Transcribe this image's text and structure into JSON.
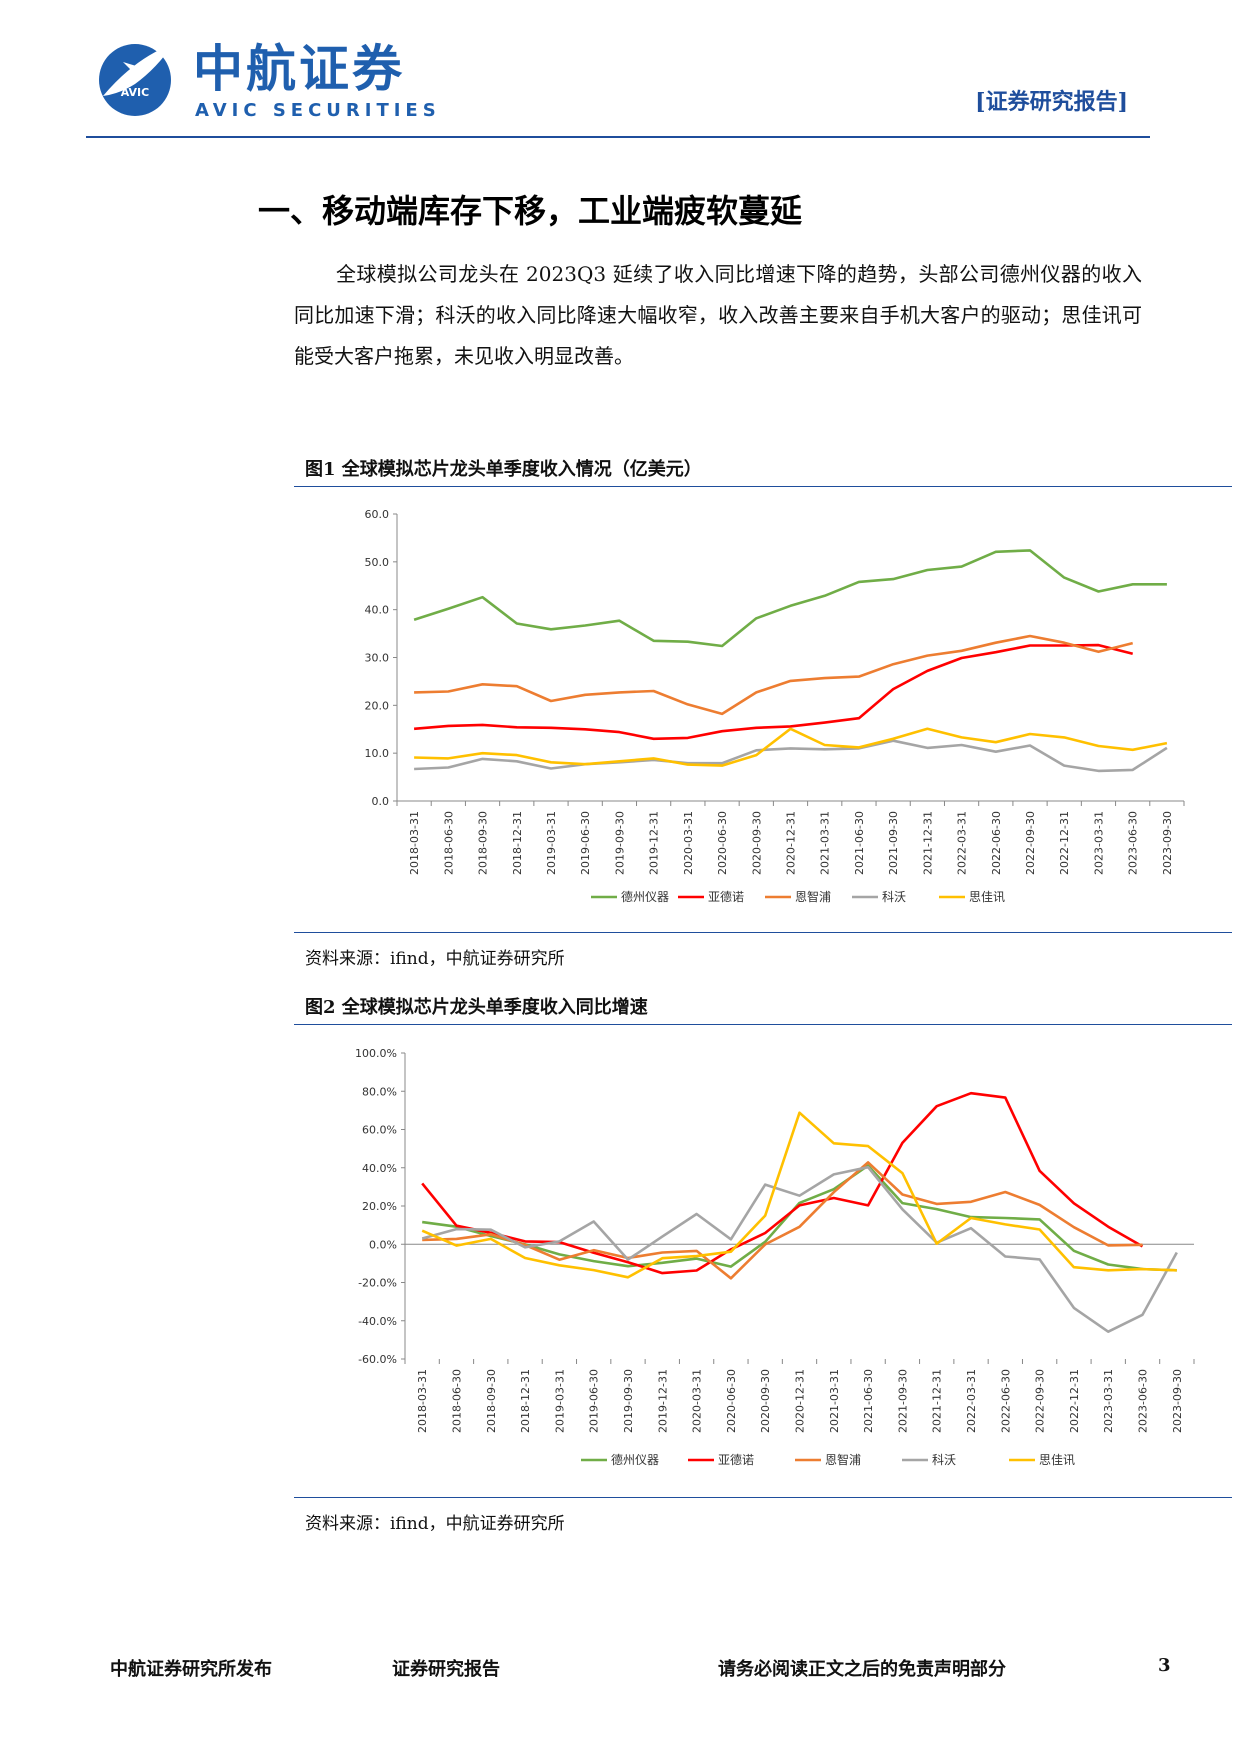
{
  "header": {
    "logo_cn": "中航证券",
    "logo_en": "AVIC SECURITIES",
    "logo_mark_text": "AVIC",
    "report_tag": "[证券研究报告]"
  },
  "section": {
    "title": "一、移动端库存下移，工业端疲软蔓延",
    "paragraph": "全球模拟公司龙头在 2023Q3 延续了收入同比增速下降的趋势，头部公司德州仪器的收入同比加速下滑；科沃的收入同比降速大幅收窄，收入改善主要来自手机大客户的驱动；思佳讯可能受大客户拖累，未见收入明显改善。"
  },
  "figures": [
    {
      "title": "图1  全球模拟芯片龙头单季度收入情况（亿美元）",
      "source": "资料来源：ifind，中航证券研究所"
    },
    {
      "title": "图2  全球模拟芯片龙头单季度收入同比增速",
      "source": "资料来源：ifind，中航证券研究所"
    }
  ],
  "footer": {
    "left": "中航证券研究所发布",
    "middle": "证券研究报告",
    "right": "请务必阅读正文之后的免责声明部分",
    "page": "3"
  },
  "chart_data": [
    {
      "type": "line",
      "x": [
        "2018-03-31",
        "2018-06-30",
        "2018-09-30",
        "2018-12-31",
        "2019-03-31",
        "2019-06-30",
        "2019-09-30",
        "2019-12-31",
        "2020-03-31",
        "2020-06-30",
        "2020-09-30",
        "2020-12-31",
        "2021-03-31",
        "2021-06-30",
        "2021-09-30",
        "2021-12-31",
        "2022-03-31",
        "2022-06-30",
        "2022-09-30",
        "2022-12-31",
        "2023-03-31",
        "2023-06-30",
        "2023-09-30"
      ],
      "ylim": [
        0,
        60
      ],
      "yticks": [
        "0.0",
        "10.0",
        "20.0",
        "30.0",
        "40.0",
        "50.0",
        "60.0"
      ],
      "legend_position": "bottom",
      "grid": false,
      "series": [
        {
          "name": "德州仪器",
          "color": "#70ad47",
          "values": [
            37.9,
            40.2,
            42.6,
            37.1,
            35.9,
            36.7,
            37.7,
            33.5,
            33.3,
            32.4,
            38.2,
            40.8,
            42.9,
            45.8,
            46.4,
            48.3,
            49.0,
            52.1,
            52.4,
            46.7,
            43.8,
            45.3,
            45.3
          ]
        },
        {
          "name": "亚德诺",
          "color": "#ff0000",
          "values": [
            15.1,
            15.7,
            15.9,
            15.4,
            15.3,
            15.0,
            14.4,
            13.0,
            13.2,
            14.6,
            15.3,
            15.6,
            16.4,
            17.3,
            23.4,
            27.2,
            29.9,
            31.1,
            32.5,
            32.5,
            32.6,
            30.8,
            null
          ]
        },
        {
          "name": "恩智浦",
          "color": "#ed7d31",
          "values": [
            22.7,
            22.9,
            24.4,
            24.0,
            20.9,
            22.2,
            22.7,
            23.0,
            20.2,
            18.2,
            22.7,
            25.1,
            25.7,
            26.0,
            28.6,
            30.4,
            31.4,
            33.1,
            34.5,
            33.1,
            31.2,
            33.0,
            null
          ]
        },
        {
          "name": "科沃",
          "color": "#a5a5a5",
          "values": [
            6.7,
            7.0,
            8.8,
            8.3,
            6.8,
            7.7,
            8.1,
            8.6,
            7.9,
            7.9,
            10.6,
            11.0,
            10.8,
            11.0,
            12.6,
            11.1,
            11.7,
            10.3,
            11.6,
            7.4,
            6.3,
            6.5,
            11.1
          ]
        },
        {
          "name": "思佳讯",
          "color": "#ffc000",
          "values": [
            9.1,
            8.9,
            10.0,
            9.6,
            8.1,
            7.7,
            8.3,
            8.9,
            7.6,
            7.4,
            9.6,
            15.1,
            11.7,
            11.2,
            13.0,
            15.1,
            13.3,
            12.3,
            14.0,
            13.3,
            11.5,
            10.7,
            12.1
          ]
        }
      ]
    },
    {
      "type": "line",
      "x": [
        "2018-03-31",
        "2018-06-30",
        "2018-09-30",
        "2018-12-31",
        "2019-03-31",
        "2019-06-30",
        "2019-09-30",
        "2019-12-31",
        "2020-03-31",
        "2020-06-30",
        "2020-09-30",
        "2020-12-31",
        "2021-03-31",
        "2021-06-30",
        "2021-09-30",
        "2021-12-31",
        "2022-03-31",
        "2022-06-30",
        "2022-09-30",
        "2022-12-31",
        "2023-03-31",
        "2023-06-30",
        "2023-09-30"
      ],
      "ylim": [
        -60,
        100
      ],
      "yticks": [
        "-60.0%",
        "-40.0%",
        "-20.0%",
        "0.0%",
        "20.0%",
        "40.0%",
        "60.0%",
        "80.0%",
        "100.0%"
      ],
      "legend_position": "bottom",
      "grid": false,
      "series": [
        {
          "name": "德州仪器",
          "color": "#70ad47",
          "values": [
            11.6,
            9.2,
            4.3,
            -0.1,
            -5.3,
            -8.8,
            -11.5,
            -9.7,
            -7.5,
            -11.7,
            1.3,
            21.6,
            28.8,
            41.1,
            21.5,
            18.4,
            14.2,
            13.7,
            13.0,
            -3.4,
            -10.6,
            -13.0,
            -13.6
          ]
        },
        {
          "name": "亚德诺",
          "color": "#ff0000",
          "values": [
            31.8,
            9.7,
            6.0,
            1.5,
            1.1,
            -4.4,
            -9.4,
            -15.1,
            -13.7,
            -2.7,
            5.9,
            20.3,
            24.2,
            20.3,
            53.0,
            72.2,
            79.0,
            76.7,
            38.4,
            21.4,
            9.2,
            -1.1,
            null
          ]
        },
        {
          "name": "恩智浦",
          "color": "#ed7d31",
          "values": [
            2.3,
            2.8,
            5.2,
            -0.4,
            -8.1,
            -3.1,
            -7.2,
            -4.3,
            -3.5,
            -17.8,
            -0.1,
            9.1,
            27.2,
            42.8,
            26.0,
            21.1,
            22.2,
            27.3,
            20.6,
            8.9,
            -0.6,
            -0.3,
            null
          ]
        },
        {
          "name": "科沃",
          "color": "#a5a5a5",
          "values": [
            3.0,
            7.9,
            7.6,
            -1.6,
            1.5,
            11.9,
            -8.0,
            4.0,
            15.8,
            2.6,
            31.2,
            25.4,
            36.5,
            40.3,
            18.3,
            0.8,
            8.4,
            -6.4,
            -7.9,
            -33.3,
            -45.7,
            -36.9,
            -4.3
          ]
        },
        {
          "name": "思佳讯",
          "color": "#ffc000",
          "values": [
            7.1,
            -0.7,
            2.8,
            -7.2,
            -11.0,
            -13.5,
            -17.3,
            -7.3,
            -6.2,
            -3.9,
            15.0,
            68.8,
            52.8,
            51.3,
            37.2,
            0.3,
            13.7,
            10.4,
            7.7,
            -12.0,
            -13.6,
            -13.0,
            -13.6
          ]
        }
      ]
    }
  ]
}
